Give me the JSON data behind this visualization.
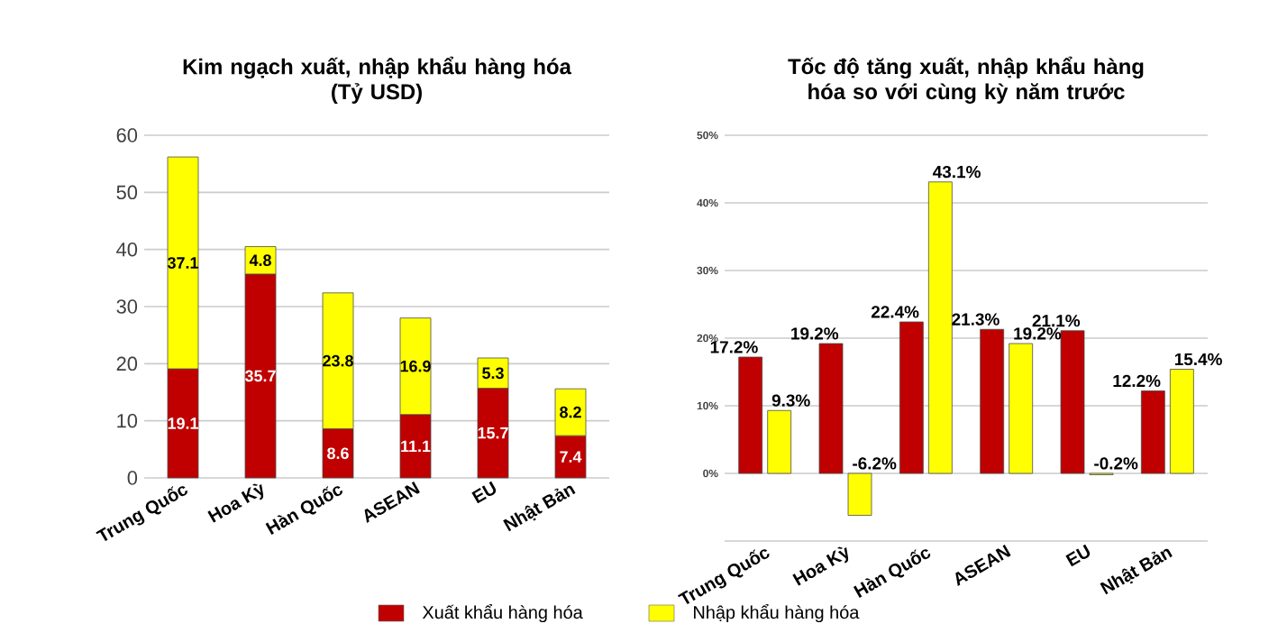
{
  "chart_data": [
    {
      "type": "bar",
      "title": "Kim ngạch xuất, nhập khẩu hàng hóa",
      "subtitle": "(Tỷ USD)",
      "stacked": true,
      "categories": [
        "Trung Quốc",
        "Hoa Kỳ",
        "Hàn Quốc",
        "ASEAN",
        "EU",
        "Nhật Bản"
      ],
      "series": [
        {
          "name": "Xuất khẩu hàng hóa",
          "color": "#c00000",
          "values": [
            19.1,
            35.7,
            8.6,
            11.1,
            15.7,
            7.4
          ]
        },
        {
          "name": "Nhập khẩu hàng hóa",
          "color": "#ffff00",
          "values": [
            37.1,
            4.8,
            23.8,
            16.9,
            5.3,
            8.2
          ]
        }
      ],
      "ylim": [
        0,
        60
      ],
      "yticks": [
        0,
        10,
        20,
        30,
        40,
        50,
        60
      ],
      "grid": "y",
      "legend": "bottom",
      "data_labels": true
    },
    {
      "type": "bar",
      "title": "Tốc độ tăng xuất, nhập khẩu hàng hóa so với cùng kỳ năm trước",
      "categories": [
        "Trung Quốc",
        "Hoa Kỳ",
        "Hàn Quốc",
        "ASEAN",
        "EU",
        "Nhật Bản"
      ],
      "series": [
        {
          "color": "#c00000",
          "values": [
            17.2,
            19.2,
            22.4,
            21.3,
            21.1,
            12.2
          ],
          "value_labels": [
            "17.2%",
            "19.2%",
            "22.4%",
            "21.3%",
            "21.1%",
            "12.2%"
          ]
        },
        {
          "color": "#ffff00",
          "values": [
            9.3,
            -6.2,
            43.1,
            19.2,
            -0.2,
            15.4
          ],
          "value_labels": [
            "9.3%",
            "-6.2%",
            "43.1%",
            "19.2%",
            "-0.2%",
            "15.4%"
          ]
        }
      ],
      "ylim": [
        -10,
        50
      ],
      "yticks": [
        {
          "value": -10,
          "label": null
        },
        {
          "value": 0,
          "label": "0%"
        },
        {
          "value": 10,
          "label": "10%"
        },
        {
          "value": 20,
          "label": "20%"
        },
        {
          "value": 30,
          "label": "30%"
        },
        {
          "value": 40,
          "label": "40%"
        },
        {
          "value": 50,
          "label": "50%"
        }
      ],
      "grid": "y"
    }
  ]
}
